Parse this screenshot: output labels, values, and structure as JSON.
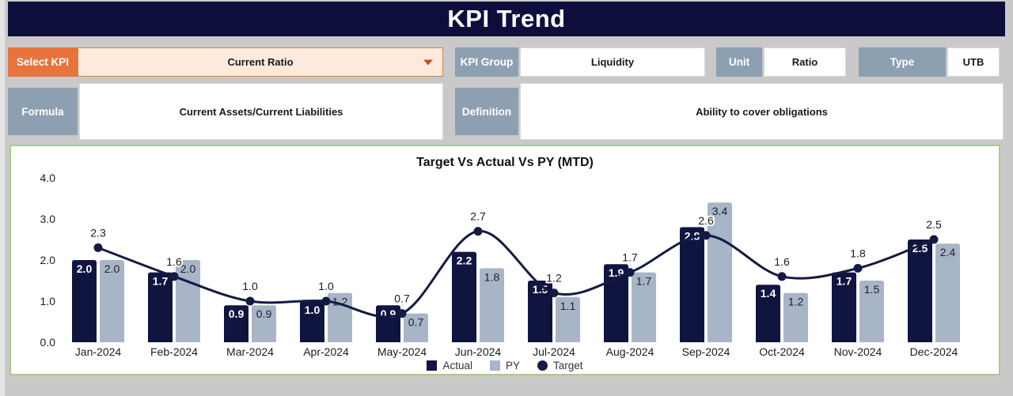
{
  "header": {
    "title": "KPI Trend"
  },
  "controls": {
    "select_kpi": {
      "label": "Select KPI",
      "value": "Current Ratio",
      "arrow_icon": "dropdown-arrow"
    },
    "kpi_group": {
      "label": "KPI Group",
      "value": "Liquidity"
    },
    "unit": {
      "label": "Unit",
      "value": "Ratio"
    },
    "type": {
      "label": "Type",
      "value": "UTB"
    },
    "formula": {
      "label": "Formula",
      "value": "Current Assets/Current Liabilities"
    },
    "definition": {
      "label": "Definition",
      "value": "Ability to cover obligations"
    }
  },
  "colors": {
    "header_bg": "#0e0e3c",
    "accent_orange": "#e8743c",
    "dropdown_bg": "#fdeadd",
    "label_blue_gray": "#8da0b2",
    "panel_border_green": "#a9c98c",
    "page_bg": "#c9c9c9"
  },
  "chart_data": {
    "type": "bar",
    "subtype": "combo-bar-line",
    "title": "Target Vs Actual Vs PY (MTD)",
    "xlabel": "",
    "ylabel": "",
    "ylim": [
      0,
      4
    ],
    "y_ticks": [
      "0.0",
      "1.0",
      "2.0",
      "3.0",
      "4.0"
    ],
    "grid": false,
    "legend_position": "bottom",
    "categories": [
      "Jan-2024",
      "Feb-2024",
      "Mar-2024",
      "Apr-2024",
      "May-2024",
      "Jun-2024",
      "Jul-2024",
      "Aug-2024",
      "Sep-2024",
      "Oct-2024",
      "Nov-2024",
      "Dec-2024"
    ],
    "series": [
      {
        "name": "Actual",
        "type": "bar",
        "color": "#101540",
        "values": [
          2.0,
          1.7,
          0.9,
          1.0,
          0.9,
          2.2,
          1.5,
          1.9,
          2.8,
          1.4,
          1.7,
          2.5
        ]
      },
      {
        "name": "PY",
        "type": "bar",
        "color": "#a7b5c6",
        "values": [
          2.0,
          2.0,
          0.9,
          1.2,
          0.7,
          1.8,
          1.1,
          1.7,
          3.4,
          1.2,
          1.5,
          2.4
        ]
      },
      {
        "name": "Target",
        "type": "line",
        "color": "#141b43",
        "values": [
          2.3,
          1.6,
          1.0,
          1.0,
          0.7,
          2.7,
          1.2,
          1.7,
          2.6,
          1.6,
          1.8,
          2.5
        ]
      }
    ]
  }
}
